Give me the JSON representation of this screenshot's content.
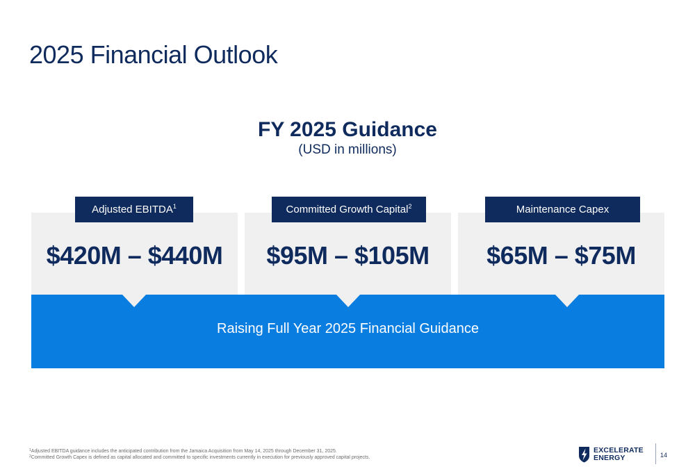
{
  "page": {
    "title": "2025 Financial Outlook",
    "number": "14"
  },
  "guidance": {
    "title": "FY 2025 Guidance",
    "subtitle": "(USD in millions)",
    "items": [
      {
        "label": "Adjusted EBITDA",
        "footnote_ref": "1",
        "value": "$420M – $440M"
      },
      {
        "label": "Committed Growth Capital",
        "footnote_ref": "2",
        "value": "$95M – $105M"
      },
      {
        "label": "Maintenance Capex",
        "footnote_ref": "",
        "value": "$65M – $75M"
      }
    ],
    "banner": "Raising Full Year 2025 Financial Guidance"
  },
  "footnotes": [
    {
      "ref": "1",
      "text": "Adjusted EBITDA guidance includes the anticipated contribution from the Jamaica Acquisition from May 14, 2025 through December 31, 2025."
    },
    {
      "ref": "2",
      "text": "Committed Growth Capex is defined as capital allocated and committed to specific investments currently in execution for previously approved capital projects."
    }
  ],
  "logo": {
    "line1": "EXCELERATE",
    "line2": "ENERGY",
    "icon": "shield-lightning-icon"
  },
  "colors": {
    "navy": "#0f2a5c",
    "blue": "#0a7de0",
    "panel_gray": "#f0f0f1"
  }
}
